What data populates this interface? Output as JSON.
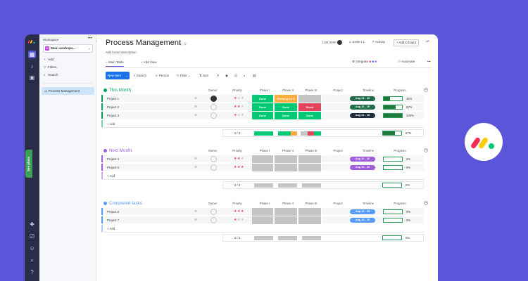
{
  "colors": {
    "accent": "#5559df",
    "done": "#00c875",
    "working": "#fdab3d",
    "stuck": "#e2445c",
    "grey": "#c4c4c4",
    "group_green": "#00a359",
    "group_purple": "#a25ddc",
    "group_blue": "#579bfc"
  },
  "workspace": {
    "label": "Workspace",
    "name": "Main workspa...",
    "badge": "M",
    "menu": [
      {
        "icon": "plus-icon",
        "label": "Add"
      },
      {
        "icon": "filter-icon",
        "label": "Filters"
      },
      {
        "icon": "search-icon",
        "label": "Search"
      }
    ],
    "board": "Process Management"
  },
  "rail": {
    "see_plans": "See plans"
  },
  "header": {
    "title": "Process Management",
    "description": "Add board description",
    "last_seen": "Last seen",
    "invite": "Invite / 1",
    "activity": "Activity",
    "add_to_board": "+ Add to board"
  },
  "tabs": {
    "main_table": "Main Table",
    "add_view": "+ Add View",
    "integrate": "Integrate",
    "automate": "Automate"
  },
  "toolbar": {
    "new_item": "New Item",
    "search": "Search",
    "person": "Person",
    "filter": "Filter",
    "sort": "Sort"
  },
  "columns": {
    "owner": "Owner",
    "priority": "Priority",
    "phase1": "Phase I",
    "phase2": "Phase II",
    "phase3": "Phase III",
    "project": "Project",
    "timeline": "Timeline",
    "progress": "Progress"
  },
  "add_row": "+ Add",
  "groups": [
    {
      "title": "This Month",
      "summary": "2 / 3",
      "summary_overall_pct": "67%",
      "rows": [
        {
          "name": "Project 1",
          "stars": 1,
          "p1": "Done",
          "p2": "Working on it",
          "p3": "",
          "timeline": "Aug 13 - 20",
          "pct": "34%",
          "progress": 0.34
        },
        {
          "name": "Project 2",
          "stars": 2,
          "p1": "Done",
          "p2": "Done",
          "p3": "Stuck",
          "timeline": "Aug 16 - 19",
          "pct": "67%",
          "progress": 0.67
        },
        {
          "name": "Project 3",
          "stars": 1,
          "p1": "Done",
          "p2": "Done",
          "p3": "Done",
          "timeline": "Aug 21 - 28",
          "pct": "100%",
          "progress": 1.0
        }
      ]
    },
    {
      "title": "Next Month",
      "summary": "2 / 3",
      "summary_overall_pct": "0%",
      "rows": [
        {
          "name": "Project 4",
          "stars": 2,
          "timeline": "Aug 10 - 16",
          "pct": "0%",
          "progress": 0
        },
        {
          "name": "Project 5",
          "stars": 3,
          "timeline": "Aug 16 - 20",
          "pct": "0%",
          "progress": 0
        }
      ]
    },
    {
      "title": "Completed tasks",
      "summary": "2 / 3",
      "summary_overall_pct": "0%",
      "rows": [
        {
          "name": "Project 6",
          "stars": 3,
          "timeline": "Aug 13 - 25",
          "pct": "0%",
          "progress": 0
        },
        {
          "name": "Project 7",
          "stars": 1,
          "timeline": "Aug 16 - 19",
          "pct": "0%",
          "progress": 0
        }
      ]
    }
  ]
}
